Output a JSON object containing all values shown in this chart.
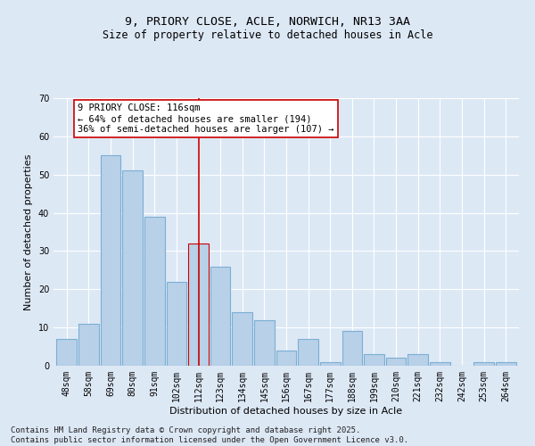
{
  "title1": "9, PRIORY CLOSE, ACLE, NORWICH, NR13 3AA",
  "title2": "Size of property relative to detached houses in Acle",
  "xlabel": "Distribution of detached houses by size in Acle",
  "ylabel": "Number of detached properties",
  "categories": [
    "48sqm",
    "58sqm",
    "69sqm",
    "80sqm",
    "91sqm",
    "102sqm",
    "112sqm",
    "123sqm",
    "134sqm",
    "145sqm",
    "156sqm",
    "167sqm",
    "177sqm",
    "188sqm",
    "199sqm",
    "210sqm",
    "221sqm",
    "232sqm",
    "242sqm",
    "253sqm",
    "264sqm"
  ],
  "values": [
    7,
    11,
    55,
    51,
    39,
    22,
    32,
    26,
    14,
    12,
    4,
    7,
    1,
    9,
    3,
    2,
    3,
    1,
    0,
    1,
    1
  ],
  "bar_color": "#b8d0e8",
  "bar_edge_color": "#7aafd4",
  "highlight_bar_color": "#b8d0e8",
  "highlight_bar_edge_color": "#cc0000",
  "vline_x_index": 6,
  "vline_color": "#cc0000",
  "annotation_text": "9 PRIORY CLOSE: 116sqm\n← 64% of detached houses are smaller (194)\n36% of semi-detached houses are larger (107) →",
  "annotation_box_color": "#ffffff",
  "annotation_box_edge_color": "#cc0000",
  "ylim": [
    0,
    70
  ],
  "yticks": [
    0,
    10,
    20,
    30,
    40,
    50,
    60,
    70
  ],
  "background_color": "#dde8f5",
  "plot_bg_color": "#dde8f5",
  "footer_text": "Contains HM Land Registry data © Crown copyright and database right 2025.\nContains public sector information licensed under the Open Government Licence v3.0.",
  "title_fontsize": 9.5,
  "subtitle_fontsize": 8.5,
  "axis_label_fontsize": 8,
  "tick_fontsize": 7,
  "footer_fontsize": 6.5,
  "annotation_fontsize": 7.5
}
